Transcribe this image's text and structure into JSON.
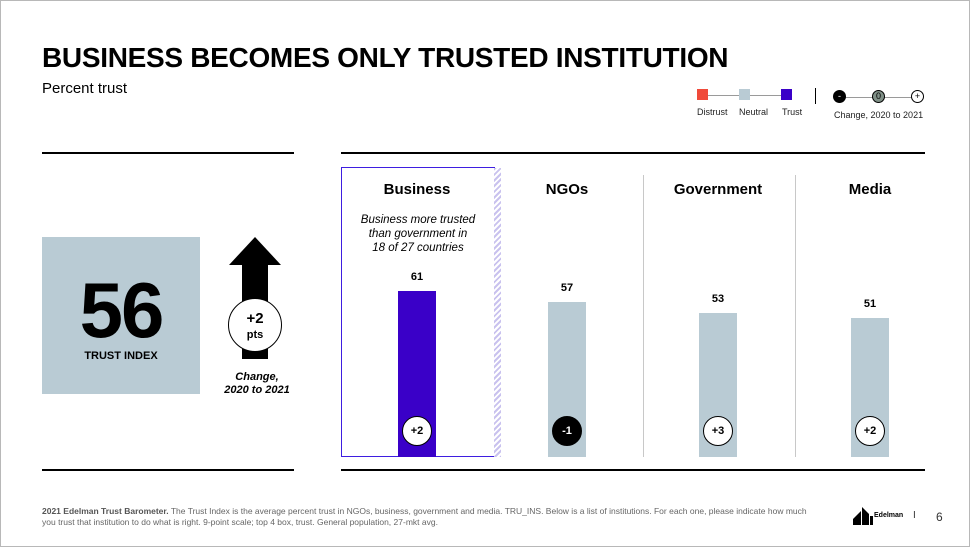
{
  "slide": {
    "title": "BUSINESS BECOMES ONLY TRUSTED INSTITUTION",
    "subtitle": "Percent trust",
    "page_number": "6",
    "brand": "Edelman",
    "brand_separator": "I",
    "footnote_bold": "2021 Edelman Trust Barometer.",
    "footnote_text": " The Trust Index is the average percent trust in NGOs, business, government and media. TRU_INS. Below is a list of institutions. For each one, please indicate how much you trust that institution to do what is right. 9-point scale; top 4 box, trust. General population, 27-mkt avg."
  },
  "legend": {
    "distrust_label": "Distrust",
    "neutral_label": "Neutral",
    "trust_label": "Trust",
    "change_minus": "-",
    "change_zero": "0",
    "change_plus": "+",
    "change_caption": "Change, 2020 to 2021",
    "colors": {
      "distrust": "#f04a3a",
      "neutral": "#b9cbd4",
      "trust": "#3a00c8",
      "zero_fill": "#7f8f86"
    }
  },
  "trust_index": {
    "value": "56",
    "label": "TRUST INDEX",
    "change_value": "+2",
    "change_unit": "pts",
    "change_caption_line1": "Change,",
    "change_caption_line2": "2020 to 2021"
  },
  "chart_data": {
    "type": "bar",
    "title": "Percent trust",
    "categories": [
      "Business",
      "NGOs",
      "Government",
      "Media"
    ],
    "values": [
      61,
      57,
      53,
      51
    ],
    "value_labels": [
      "61",
      "57",
      "53",
      "51"
    ],
    "changes": [
      "+2",
      "-1",
      "+3",
      "+2"
    ],
    "bar_colors": [
      "#3a00c8",
      "#b9cbd4",
      "#b9cbd4",
      "#b9cbd4"
    ],
    "change_styles": [
      "light",
      "dark",
      "light",
      "light"
    ],
    "highlight_category": "Business",
    "annotation": {
      "line1": "Business more trusted",
      "line2": "than government in",
      "line3": "18 of 27 countries"
    },
    "ylim": [
      0,
      100
    ],
    "grid": false,
    "legend_position": "top-right"
  }
}
